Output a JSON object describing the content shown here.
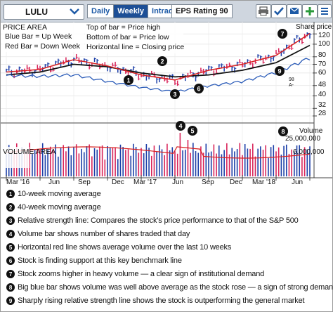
{
  "toolbar": {
    "symbol": "LULU",
    "tabs": [
      "Daily",
      "Weekly",
      "Intraday"
    ],
    "active_tab": "Weekly",
    "eps_rating": "EPS Rating 90"
  },
  "chart": {
    "price_area_title": "PRICE AREA",
    "price_area_notes": [
      "Blue Bar = Up Week",
      "Red Bar = Down Week"
    ],
    "bar_notes": [
      "Top of bar = Price high",
      "Bottom of bar = Price low",
      "Horizontal line = Closing price"
    ],
    "share_price_label": "Share price",
    "price_ticks": [
      "120",
      "100",
      "80",
      "70",
      "60",
      "48",
      "40",
      "32",
      "28"
    ],
    "volume_area_title": "VOLUME AREA",
    "volume_label": "Volume",
    "volume_ticks": [
      "25,000,000",
      "6,000,000"
    ],
    "rs_rating": "98",
    "rs_grade": "A-",
    "x_labels": [
      "Mar '16",
      "Jun",
      "Sep",
      "Dec",
      "Mar '17",
      "Jun",
      "Sep",
      "Dec",
      "Mar '18",
      "Jun"
    ],
    "markers": [
      "1",
      "2",
      "3",
      "4",
      "5",
      "6",
      "7",
      "8",
      "9"
    ],
    "colors": {
      "up": "#1c3fa8",
      "down": "#d8245a",
      "ma10": "#d82020",
      "ma40": "#111111",
      "rs": "#2a5bb8"
    }
  },
  "chart_data": {
    "type": "line",
    "x": [
      "Mar '16",
      "Jun",
      "Sep",
      "Dec",
      "Mar '17",
      "Jun",
      "Sep",
      "Dec",
      "Mar '18",
      "Jun"
    ],
    "series": [
      {
        "values": [
          61,
          64,
          76,
          68,
          58,
          53,
          63,
          70,
          82,
          121
        ]
      },
      {
        "values": [
          58,
          61,
          70,
          67,
          60,
          56,
          58,
          63,
          72,
          98
        ]
      }
    ],
    "ylabel": "Share price",
    "ylim": [
      28,
      125
    ],
    "yticks": [
      120,
      100,
      80,
      70,
      60,
      48,
      40,
      32,
      28
    ],
    "volume_ticks": [
      25000000,
      6000000
    ]
  },
  "legend": [
    {
      "num": "1",
      "text": "10-week moving average"
    },
    {
      "num": "2",
      "text": "40-week moving average"
    },
    {
      "num": "3",
      "text": "Relative strength line: Compares the stock’s price performance to that of the S&P 500"
    },
    {
      "num": "4",
      "text": "Volume bar shows number of shares traded that day"
    },
    {
      "num": "5",
      "text": "Horizontal red line shows average volume over the last 10 weeks"
    },
    {
      "num": "6",
      "text": "Stock is finding support at this key benchmark line"
    },
    {
      "num": "7",
      "text": "Stock zooms higher in heavy volume — a clear sign of institutional demand"
    },
    {
      "num": "8",
      "text": "Big blue bar shows volume was well above average as the stock rose — a sign of strong demand"
    },
    {
      "num": "9",
      "text": "Sharply rising relative strength line shows the stock is outperforming the general market"
    }
  ]
}
